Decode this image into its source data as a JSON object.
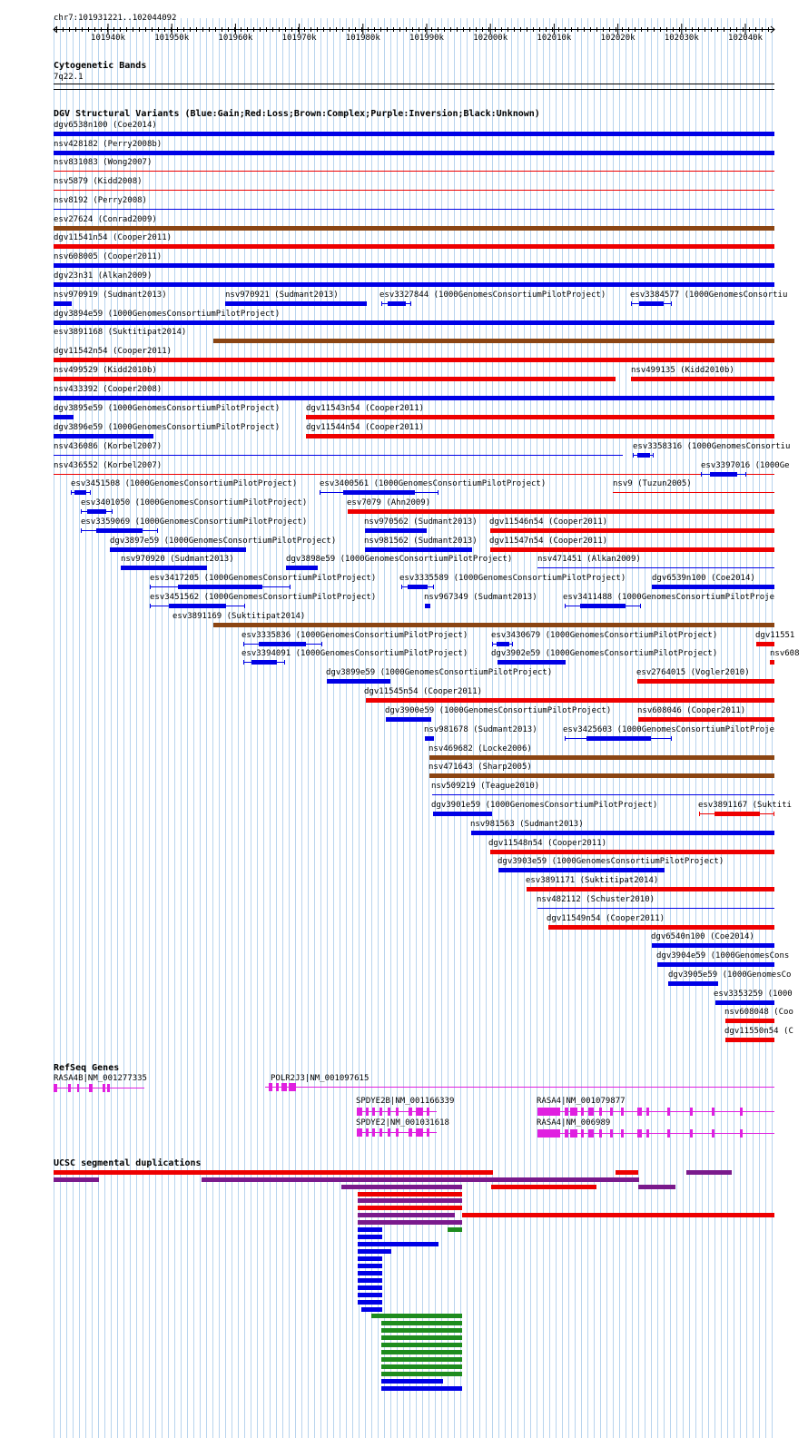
{
  "palette": {
    "blue": "#0000e6",
    "red": "#ee0000",
    "brown": "#8b4513",
    "purple": "#7a1a8c",
    "green": "#1e8c1e",
    "magenta": "#e020e0",
    "gridline": "#b8d4ee"
  },
  "position_label": "chr7:101931221..102044092",
  "ruler_ticks": [
    "101940k",
    "101950k",
    "101960k",
    "101970k",
    "101980k",
    "101990k",
    "102000k",
    "102010k",
    "102020k",
    "102030k",
    "102040k"
  ],
  "cyto": {
    "title": "Cytogenetic Bands",
    "band": "7q22.1"
  },
  "dgv": {
    "title": "DGV Structural Variants (Blue:Gain;Red:Loss;Brown:Complex;Purple:Inversion;Black:Unknown)",
    "labels": [
      "dgv6538n100 (Coe2014)",
      "nsv428182 (Perry2008b)",
      "nsv831083 (Wong2007)",
      "nsv5879 (Kidd2008)",
      "nsv8192 (Perry2008)",
      "esv27624 (Conrad2009)",
      "dgv11541n54 (Cooper2011)",
      "nsv608005 (Cooper2011)",
      "dgv23n31 (Alkan2009)",
      "nsv970919 (Sudmant2013)",
      "nsv970921 (Sudmant2013)",
      "esv3327844 (1000GenomesConsortiumPilotProject)",
      "esv3384577 (1000GenomesConsortiu",
      "dgv3894e59 (1000GenomesConsortiumPilotProject)",
      "esv3891168 (Suktitipat2014)",
      "dgv11542n54 (Cooper2011)",
      "nsv499529 (Kidd2010b)",
      "nsv499135 (Kidd2010b)",
      "nsv433392 (Cooper2008)",
      "dgv3895e59 (1000GenomesConsortiumPilotProject)",
      "dgv11543n54 (Cooper2011)",
      "dgv3896e59 (1000GenomesConsortiumPilotProject)",
      "dgv11544n54 (Cooper2011)",
      "nsv436086 (Korbel2007)",
      "esv3358316 (1000GenomesConsortiu",
      "nsv436552 (Korbel2007)",
      "esv3397016 (1000Ge",
      "esv3451508 (1000GenomesConsortiumPilotProject)",
      "esv3400561 (1000GenomesConsortiumPilotProject)",
      "nsv9 (Tuzun2005)",
      "esv3401050 (1000GenomesConsortiumPilotProject)",
      "esv7079 (Ahn2009)",
      "esv3359069 (1000GenomesConsortiumPilotProject)",
      "nsv970562 (Sudmant2013)",
      "dgv11546n54 (Cooper2011)",
      "dgv3897e59 (1000GenomesConsortiumPilotProject)",
      "nsv981562 (Sudmant2013)",
      "dgv11547n54 (Cooper2011)",
      "nsv970920 (Sudmant2013)",
      "dgv3898e59 (1000GenomesConsortiumPilotProject)",
      "nsv471451 (Alkan2009)",
      "esv3417205 (1000GenomesConsortiumPilotProject)",
      "esv3335589 (1000GenomesConsortiumPilotProject)",
      "dgv6539n100 (Coe2014)",
      "esv3451562 (1000GenomesConsortiumPilotProject)",
      "nsv967349 (Sudmant2013)",
      "esv3411488 (1000GenomesConsortiumPilotProje",
      "esv3891169 (Suktitipat2014)",
      "esv3335836 (1000GenomesConsortiumPilotProject)",
      "esv3430679 (1000GenomesConsortiumPilotProject)",
      "dgv11551",
      "esv3394091 (1000GenomesConsortiumPilotProject)",
      "dgv3902e59 (1000GenomesConsortiumPilotProject)",
      "nsv608",
      "dgv3899e59 (1000GenomesConsortiumPilotProject)",
      "esv2764015 (Vogler2010)",
      "dgv11545n54 (Cooper2011)",
      "dgv3900e59 (1000GenomesConsortiumPilotProject)",
      "nsv608046 (Cooper2011)",
      "nsv981678 (Sudmant2013)",
      "esv3425603 (1000GenomesConsortiumPilotProje",
      "nsv469682 (Locke2006)",
      "nsv471643 (Sharp2005)",
      "nsv509219 (Teague2010)",
      "dgv3901e59 (1000GenomesConsortiumPilotProject)",
      "esv3891167 (Suktiti",
      "nsv981563 (Sudmant2013)",
      "dgv11548n54 (Cooper2011)",
      "dgv3903e59 (1000GenomesConsortiumPilotProject)",
      "esv3891171 (Suktitipat2014)",
      "nsv482112 (Schuster2010)",
      "dgv11549n54 (Cooper2011)",
      "dgv6540n100 (Coe2014)",
      "dgv3904e59 (1000GenomesCons",
      "dgv3905e59 (1000GenomesCo",
      "esv3353259 (1000",
      "nsv608048 (Coo",
      "dgv11550n54 (C"
    ]
  },
  "refseq": {
    "title": "RefSeq Genes",
    "genes": [
      "RASA4B|NM_001277335",
      "POLR2J3|NM_001097615",
      "SPDYE2B|NM_001166339",
      "SPDYE2|NM_001031618",
      "RASA4|NM_001079877",
      "RASA4|NM_006989"
    ]
  },
  "segdup": {
    "title": "UCSC segmental duplications"
  }
}
